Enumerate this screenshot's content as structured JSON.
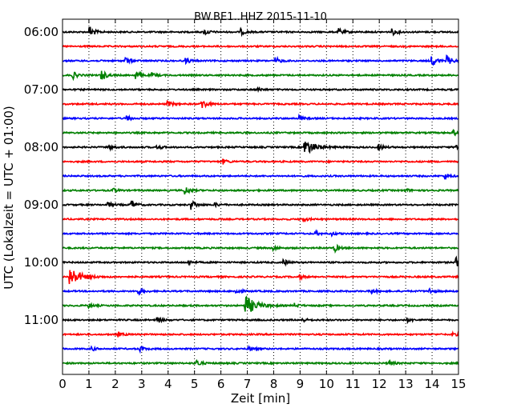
{
  "chart_data": {
    "type": "line",
    "title": "BW.BE1..HHZ 2015-11-10",
    "xlabel": "Zeit  [min]",
    "ylabel": "UTC (Lokalzeit = UTC + 01:00)",
    "xlim": [
      0,
      15
    ],
    "x_ticks": [
      "0",
      "1",
      "2",
      "3",
      "4",
      "5",
      "6",
      "7",
      "8",
      "9",
      "10",
      "11",
      "12",
      "13",
      "14",
      "15"
    ],
    "y_tick_labels": [
      "06:00",
      "07:00",
      "08:00",
      "09:00",
      "10:00",
      "11:00"
    ],
    "grid": {
      "x": true,
      "y": false
    },
    "trace_colors": [
      "#000000",
      "#ff0000",
      "#0000ff",
      "#008000"
    ],
    "traces": [
      {
        "start": "06:00",
        "events": [
          {
            "t": 1.05,
            "a": 1.0
          },
          {
            "t": 5.4,
            "a": 0.5
          },
          {
            "t": 6.75,
            "a": 0.5
          },
          {
            "t": 10.5,
            "a": 0.55
          },
          {
            "t": 12.5,
            "a": 0.5
          }
        ]
      },
      {
        "start": "06:15",
        "events": []
      },
      {
        "start": "06:30",
        "events": [
          {
            "t": 2.4,
            "a": 0.55
          },
          {
            "t": 4.7,
            "a": 0.4
          },
          {
            "t": 8.1,
            "a": 0.5
          },
          {
            "t": 14.0,
            "a": 1.0
          },
          {
            "t": 14.6,
            "a": 0.8
          }
        ]
      },
      {
        "start": "06:45",
        "events": [
          {
            "t": 0.4,
            "a": 0.6
          },
          {
            "t": 1.5,
            "a": 0.9
          },
          {
            "t": 2.8,
            "a": 0.7
          },
          {
            "t": 3.4,
            "a": 0.3
          }
        ]
      },
      {
        "start": "07:00",
        "events": [
          {
            "t": 7.4,
            "a": 0.3
          }
        ]
      },
      {
        "start": "07:15",
        "events": [
          {
            "t": 4.0,
            "a": 0.45
          },
          {
            "t": 5.3,
            "a": 0.9
          }
        ]
      },
      {
        "start": "07:30",
        "events": [
          {
            "t": 2.45,
            "a": 0.45
          },
          {
            "t": 9.0,
            "a": 0.4
          }
        ]
      },
      {
        "start": "07:45",
        "events": [
          {
            "t": 14.8,
            "a": 0.5
          }
        ]
      },
      {
        "start": "08:00",
        "events": [
          {
            "t": 1.8,
            "a": 0.4
          },
          {
            "t": 3.6,
            "a": 0.4
          },
          {
            "t": 9.2,
            "a": 1.3
          },
          {
            "t": 12.0,
            "a": 0.5
          },
          {
            "t": 14.9,
            "a": 0.6
          }
        ]
      },
      {
        "start": "08:15",
        "events": [
          {
            "t": 6.1,
            "a": 0.4
          }
        ]
      },
      {
        "start": "08:30",
        "events": [
          {
            "t": 14.5,
            "a": 0.5
          }
        ]
      },
      {
        "start": "08:45",
        "events": [
          {
            "t": 1.9,
            "a": 0.4
          },
          {
            "t": 4.65,
            "a": 0.7
          },
          {
            "t": 13.0,
            "a": 0.3
          }
        ]
      },
      {
        "start": "09:00",
        "events": [
          {
            "t": 1.7,
            "a": 0.5
          },
          {
            "t": 2.6,
            "a": 0.9
          },
          {
            "t": 4.9,
            "a": 0.8
          },
          {
            "t": 5.8,
            "a": 0.3
          }
        ]
      },
      {
        "start": "09:15",
        "events": [
          {
            "t": 9.1,
            "a": 0.4
          }
        ]
      },
      {
        "start": "09:30",
        "events": [
          {
            "t": 9.6,
            "a": 0.3
          },
          {
            "t": 10.2,
            "a": 0.3
          }
        ]
      },
      {
        "start": "09:45",
        "events": [
          {
            "t": 8.0,
            "a": 0.35
          },
          {
            "t": 10.3,
            "a": 0.7
          }
        ]
      },
      {
        "start": "10:00",
        "events": [
          {
            "t": 4.8,
            "a": 0.3
          },
          {
            "t": 8.4,
            "a": 0.4
          },
          {
            "t": 14.9,
            "a": 0.9
          }
        ]
      },
      {
        "start": "10:15",
        "events": [
          {
            "t": 0.3,
            "a": 1.6
          },
          {
            "t": 9.0,
            "a": 0.3
          }
        ]
      },
      {
        "start": "10:30",
        "events": [
          {
            "t": 2.9,
            "a": 0.4
          },
          {
            "t": 6.6,
            "a": 0.5
          },
          {
            "t": 11.7,
            "a": 0.4
          },
          {
            "t": 13.9,
            "a": 0.5
          }
        ]
      },
      {
        "start": "10:45",
        "events": [
          {
            "t": 1.0,
            "a": 0.35
          },
          {
            "t": 6.95,
            "a": 1.7
          },
          {
            "t": 8.8,
            "a": 0.35
          }
        ]
      },
      {
        "start": "11:00",
        "events": [
          {
            "t": 3.6,
            "a": 0.5
          },
          {
            "t": 9.1,
            "a": 0.3
          },
          {
            "t": 13.1,
            "a": 0.3
          }
        ]
      },
      {
        "start": "11:15",
        "events": [
          {
            "t": 2.1,
            "a": 0.4
          },
          {
            "t": 14.8,
            "a": 0.3
          }
        ]
      },
      {
        "start": "11:30",
        "events": [
          {
            "t": 1.1,
            "a": 0.35
          },
          {
            "t": 2.95,
            "a": 0.4
          },
          {
            "t": 7.1,
            "a": 0.3
          }
        ]
      },
      {
        "start": "11:45",
        "events": [
          {
            "t": 5.1,
            "a": 0.55
          },
          {
            "t": 12.4,
            "a": 0.35
          }
        ]
      }
    ]
  }
}
